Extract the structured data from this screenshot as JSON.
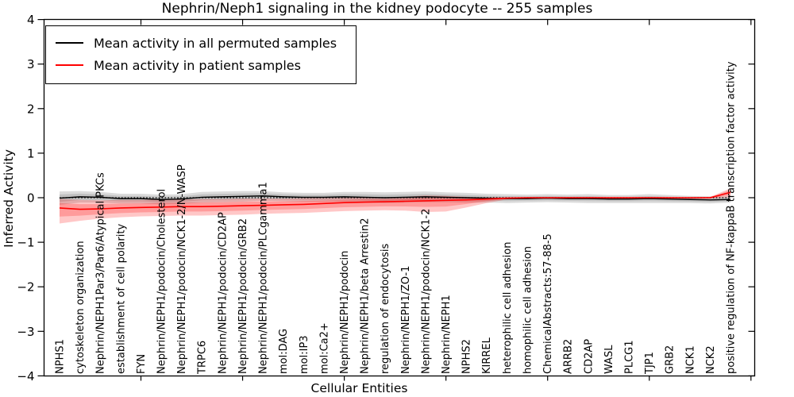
{
  "chart_data": {
    "type": "line",
    "title": "Nephrin/Neph1 signaling in the kidney podocyte -- 255 samples",
    "xlabel": "Cellular Entities",
    "ylabel": "Inferred Activity",
    "ylim": [
      -4,
      4
    ],
    "ytick_values": [
      4,
      3,
      2,
      1,
      0,
      -1,
      -2,
      -3,
      -4
    ],
    "ytick_labels": [
      "4",
      "3",
      "2",
      "1",
      "0",
      "−1",
      "−2",
      "−3",
      "−4"
    ],
    "grid": false,
    "zero_line": "dotted black at y=0",
    "legend_position": "upper left",
    "categories": [
      "NPHS1",
      "cytoskeleton organization",
      "Nephrin/NEPH1Par3/Par6/Atypical PKCs",
      "establishment of cell polarity",
      "FYN",
      "Nephrin/NEPH1/podocin/Cholesterol",
      "Nephrin/NEPH1/podocin/NCK1-2/N-WASP",
      "TRPC6",
      "Nephrin/NEPH1/podocin/CD2AP",
      "Nephrin/NEPH1/podocin/GRB2",
      "Nephrin/NEPH1/podocin/PLCgamma1",
      "mol:DAG",
      "mol:IP3",
      "mol:Ca2+",
      "Nephrin/NEPH1/podocin",
      "Nephrin/NEPH1/beta Arrestin2",
      "regulation of endocytosis",
      "Nephrin/NEPH1/ZO-1",
      "Nephrin/NEPH1/podocin/NCK1-2",
      "Nephrin/NEPH1",
      "NPHS2",
      "KIRREL",
      "heterophilic cell adhesion",
      "homophilic cell adhesion",
      "ChemicalAbstracts:57-88-5",
      "ARRB2",
      "CD2AP",
      "WASL",
      "PLCG1",
      "TJP1",
      "GRB2",
      "NCK1",
      "NCK2",
      "positive regulation of NF-kappaB transcription factor activity"
    ],
    "series": [
      {
        "name": "Mean activity in all permuted samples",
        "color": "#000000",
        "band_color": "rgba(125,125,125,0.28)",
        "values": [
          -0.01,
          0.02,
          0.01,
          -0.02,
          -0.02,
          -0.04,
          -0.03,
          0.01,
          0.02,
          0.03,
          0.04,
          0.02,
          0.01,
          0.01,
          0.02,
          0.01,
          0.0,
          0.01,
          0.02,
          0.01,
          0.0,
          -0.01,
          -0.02,
          -0.02,
          -0.01,
          -0.02,
          -0.02,
          -0.03,
          -0.03,
          -0.02,
          -0.03,
          -0.04,
          -0.05,
          -0.04
        ],
        "band_lower": [
          -0.16,
          -0.11,
          -0.11,
          -0.13,
          -0.13,
          -0.15,
          -0.14,
          -0.11,
          -0.1,
          -0.09,
          -0.07,
          -0.08,
          -0.09,
          -0.09,
          -0.09,
          -0.11,
          -0.12,
          -0.11,
          -0.1,
          -0.1,
          -0.11,
          -0.11,
          -0.12,
          -0.11,
          -0.1,
          -0.11,
          -0.12,
          -0.12,
          -0.12,
          -0.12,
          -0.12,
          -0.12,
          -0.13,
          -0.11
        ],
        "band_upper": [
          0.14,
          0.15,
          0.13,
          0.09,
          0.09,
          0.07,
          0.08,
          0.13,
          0.14,
          0.15,
          0.15,
          0.12,
          0.11,
          0.11,
          0.13,
          0.13,
          0.12,
          0.13,
          0.14,
          0.12,
          0.11,
          0.09,
          0.08,
          0.07,
          0.08,
          0.07,
          0.08,
          0.06,
          0.06,
          0.08,
          0.06,
          0.04,
          0.03,
          0.03
        ]
      },
      {
        "name": "Mean activity in patient samples",
        "color": "#ff0000",
        "band_color": "rgba(255,0,0,0.22)",
        "values": [
          -0.23,
          -0.26,
          -0.25,
          -0.23,
          -0.22,
          -0.21,
          -0.2,
          -0.2,
          -0.19,
          -0.18,
          -0.17,
          -0.16,
          -0.15,
          -0.13,
          -0.11,
          -0.1,
          -0.09,
          -0.08,
          -0.07,
          -0.06,
          -0.05,
          -0.03,
          -0.01,
          0.0,
          0.0,
          0.0,
          0.0,
          0.0,
          0.0,
          0.0,
          0.0,
          0.0,
          0.0,
          0.12
        ],
        "band_lower": [
          -0.58,
          -0.52,
          -0.47,
          -0.44,
          -0.42,
          -0.41,
          -0.4,
          -0.4,
          -0.39,
          -0.38,
          -0.36,
          -0.35,
          -0.34,
          -0.32,
          -0.3,
          -0.29,
          -0.28,
          -0.29,
          -0.32,
          -0.31,
          -0.22,
          -0.12,
          -0.04,
          -0.02,
          -0.02,
          -0.02,
          -0.02,
          -0.02,
          -0.02,
          -0.02,
          -0.02,
          -0.02,
          -0.02,
          0.01
        ],
        "band_upper": [
          -0.03,
          -0.05,
          -0.06,
          -0.05,
          -0.05,
          -0.04,
          -0.04,
          -0.03,
          -0.03,
          -0.02,
          -0.02,
          -0.02,
          -0.01,
          -0.01,
          0.0,
          0.01,
          0.01,
          0.02,
          0.05,
          0.04,
          0.02,
          0.01,
          0.01,
          0.01,
          0.01,
          0.01,
          0.01,
          0.01,
          0.01,
          0.01,
          0.01,
          0.01,
          0.02,
          0.21
        ]
      }
    ]
  }
}
